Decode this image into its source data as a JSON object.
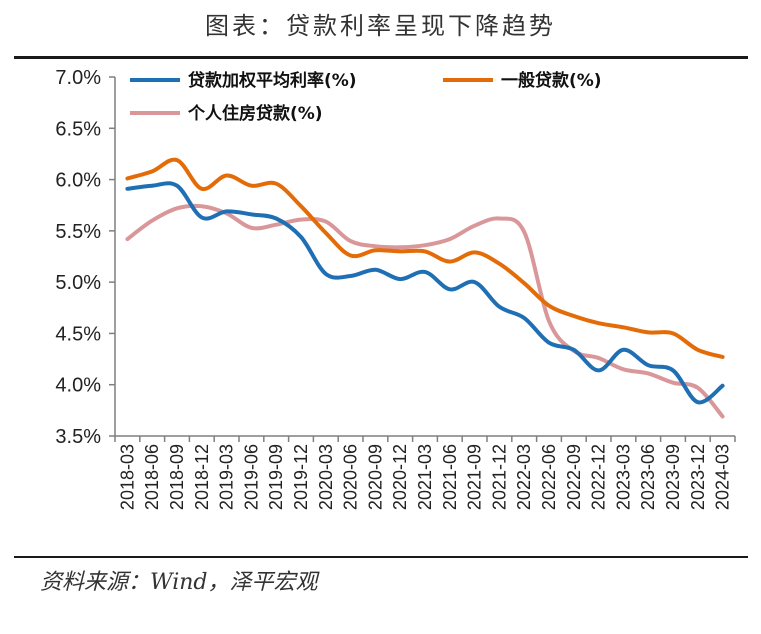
{
  "title": "图表：贷款利率呈现下降趋势",
  "source": "资料来源：Wind，泽平宏观",
  "colors": {
    "series1": "#1f6fb4",
    "series2": "#e36c09",
    "series3": "#d9979a",
    "axis": "#7f7f7f"
  },
  "chart_data": {
    "type": "line",
    "x": [
      "2018-03",
      "2018-06",
      "2018-09",
      "2018-12",
      "2019-03",
      "2019-06",
      "2019-09",
      "2019-12",
      "2020-03",
      "2020-06",
      "2020-09",
      "2020-12",
      "2021-03",
      "2021-06",
      "2021-09",
      "2021-12",
      "2022-03",
      "2022-06",
      "2022-09",
      "2022-12",
      "2023-03",
      "2023-06",
      "2023-09",
      "2023-12",
      "2024-03"
    ],
    "series": [
      {
        "name": "贷款加权平均利率(%)",
        "color": "#1f6fb4",
        "values": [
          5.91,
          5.94,
          5.94,
          5.63,
          5.69,
          5.66,
          5.62,
          5.44,
          5.08,
          5.06,
          5.12,
          5.03,
          5.1,
          4.93,
          5.0,
          4.76,
          4.65,
          4.41,
          4.34,
          4.14,
          4.34,
          4.19,
          4.14,
          3.83,
          3.99
        ]
      },
      {
        "name": "一般贷款(%)",
        "color": "#e36c09",
        "values": [
          6.01,
          6.08,
          6.19,
          5.91,
          6.04,
          5.94,
          5.96,
          5.74,
          5.48,
          5.26,
          5.31,
          5.3,
          5.3,
          5.2,
          5.29,
          5.18,
          4.99,
          4.77,
          4.67,
          4.6,
          4.56,
          4.51,
          4.5,
          4.34,
          4.27
        ]
      },
      {
        "name": "个人住房贷款(%)",
        "color": "#d9979a",
        "values": [
          5.42,
          5.6,
          5.72,
          5.74,
          5.67,
          5.53,
          5.56,
          5.61,
          5.59,
          5.4,
          5.35,
          5.34,
          5.36,
          5.42,
          5.55,
          5.62,
          5.49,
          4.62,
          4.33,
          4.26,
          4.15,
          4.11,
          4.02,
          3.97,
          3.69
        ]
      }
    ],
    "ylim": [
      3.5,
      7.0
    ],
    "yticks": [
      "3.5%",
      "4.0%",
      "4.5%",
      "5.0%",
      "5.5%",
      "6.0%",
      "6.5%",
      "7.0%"
    ],
    "ytick_values": [
      3.5,
      4.0,
      4.5,
      5.0,
      5.5,
      6.0,
      6.5,
      7.0
    ],
    "grid": false,
    "legend": "top"
  }
}
